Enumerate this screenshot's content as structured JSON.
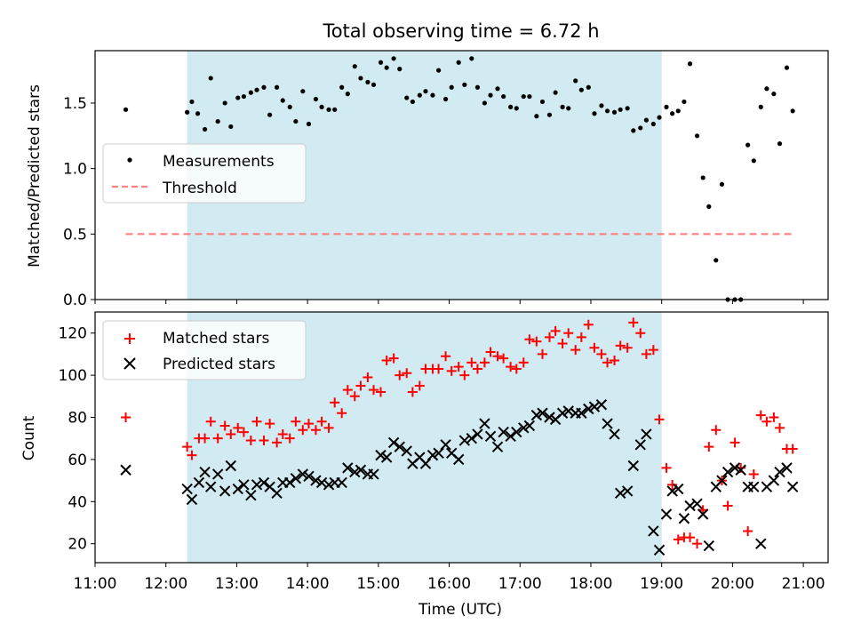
{
  "chart_data": [
    {
      "type": "scatter",
      "title": "Total observing time = 6.72 h",
      "ylabel": "Matched/Predicted stars",
      "ylim": [
        0,
        1.9
      ],
      "yticks": [
        0.0,
        0.5,
        1.0,
        1.5
      ],
      "ytick_labels": [
        "0.0",
        "0.5",
        "1.0",
        "1.5"
      ],
      "grid": false,
      "legend_position": "center-left",
      "shaded_span": {
        "x_start": "12:18",
        "x_end": "19:00",
        "color": "#add8e6"
      },
      "series": [
        {
          "name": "Measurements",
          "marker": "dot",
          "color": "#000000",
          "x": [
            "11:26",
            "12:18",
            "12:22",
            "12:27",
            "12:33",
            "12:38",
            "12:44",
            "12:50",
            "12:55",
            "13:01",
            "13:06",
            "13:12",
            "13:17",
            "13:23",
            "13:28",
            "13:34",
            "13:39",
            "13:45",
            "13:50",
            "13:56",
            "14:01",
            "14:07",
            "14:12",
            "14:18",
            "14:23",
            "14:29",
            "14:34",
            "14:40",
            "14:45",
            "14:51",
            "14:56",
            "15:02",
            "15:07",
            "15:13",
            "15:18",
            "15:24",
            "15:29",
            "15:35",
            "15:40",
            "15:46",
            "15:51",
            "15:57",
            "16:02",
            "16:08",
            "16:13",
            "16:19",
            "16:24",
            "16:30",
            "16:35",
            "16:41",
            "16:46",
            "16:52",
            "16:57",
            "17:03",
            "17:08",
            "17:14",
            "17:19",
            "17:25",
            "17:30",
            "17:36",
            "17:41",
            "17:47",
            "17:52",
            "17:58",
            "18:03",
            "18:09",
            "18:14",
            "18:20",
            "18:25",
            "18:31",
            "18:36",
            "18:42",
            "18:47",
            "18:53",
            "18:58",
            "19:04",
            "19:09",
            "19:14",
            "19:19",
            "19:24",
            "19:30",
            "19:35",
            "19:40",
            "19:46",
            "19:51",
            "19:56",
            "20:02",
            "20:07",
            "20:13",
            "20:18",
            "20:24",
            "20:29",
            "20:35",
            "20:40",
            "20:46",
            "20:51"
          ],
          "y": [
            1.45,
            1.43,
            1.51,
            1.42,
            1.3,
            1.69,
            1.36,
            1.5,
            1.32,
            1.54,
            1.55,
            1.58,
            1.6,
            1.62,
            1.41,
            1.62,
            1.52,
            1.47,
            1.36,
            1.59,
            1.34,
            1.53,
            1.47,
            1.45,
            1.45,
            1.62,
            1.57,
            1.78,
            1.69,
            1.66,
            1.64,
            1.81,
            1.77,
            1.84,
            1.76,
            1.54,
            1.51,
            1.56,
            1.59,
            1.56,
            1.75,
            1.53,
            1.62,
            1.81,
            1.64,
            1.84,
            1.62,
            1.5,
            1.56,
            1.61,
            1.55,
            1.47,
            1.46,
            1.55,
            1.55,
            1.4,
            1.51,
            1.41,
            1.58,
            1.47,
            1.46,
            1.67,
            1.6,
            1.62,
            1.42,
            1.48,
            1.44,
            1.43,
            1.45,
            1.46,
            1.29,
            1.31,
            1.37,
            1.34,
            1.39,
            1.47,
            1.42,
            1.44,
            1.51,
            1.8,
            1.25,
            0.93,
            0.71,
            0.3,
            0.88,
            0.0,
            0.0,
            0.0,
            1.18,
            1.06,
            1.47,
            1.61,
            1.57,
            1.19,
            1.77,
            1.44
          ]
        },
        {
          "name": "Threshold",
          "marker": "dashed-line",
          "color": "#ff8080",
          "x": [
            "11:26",
            "20:51"
          ],
          "y": [
            0.5,
            0.5
          ]
        }
      ]
    },
    {
      "type": "scatter",
      "xlabel": "Time (UTC)",
      "ylabel": "Count",
      "ylim": [
        11,
        130
      ],
      "yticks": [
        20,
        40,
        60,
        80,
        100,
        120
      ],
      "ytick_labels": [
        "20",
        "40",
        "60",
        "80",
        "100",
        "120"
      ],
      "xlim": [
        "11:00",
        "21:21"
      ],
      "xticks": [
        "11:00",
        "12:00",
        "13:00",
        "14:00",
        "15:00",
        "16:00",
        "17:00",
        "18:00",
        "19:00",
        "20:00",
        "21:00"
      ],
      "grid": false,
      "legend_position": "top-left",
      "shaded_span": {
        "x_start": "12:18",
        "x_end": "19:00",
        "color": "#add8e6"
      },
      "series": [
        {
          "name": "Matched stars",
          "marker": "plus",
          "color": "#ff0000",
          "x": [
            "11:26",
            "12:18",
            "12:22",
            "12:28",
            "12:33",
            "12:38",
            "12:44",
            "12:50",
            "12:55",
            "13:01",
            "13:06",
            "13:12",
            "13:17",
            "13:23",
            "13:28",
            "13:34",
            "13:39",
            "13:45",
            "13:50",
            "13:56",
            "14:01",
            "14:07",
            "14:12",
            "14:18",
            "14:23",
            "14:29",
            "14:34",
            "14:40",
            "14:45",
            "14:51",
            "14:56",
            "15:02",
            "15:07",
            "15:13",
            "15:18",
            "15:24",
            "15:29",
            "15:35",
            "15:40",
            "15:46",
            "15:51",
            "15:57",
            "16:02",
            "16:08",
            "16:13",
            "16:19",
            "16:24",
            "16:30",
            "16:35",
            "16:41",
            "16:46",
            "16:52",
            "16:57",
            "17:03",
            "17:08",
            "17:14",
            "17:19",
            "17:25",
            "17:30",
            "17:36",
            "17:41",
            "17:47",
            "17:52",
            "17:58",
            "18:03",
            "18:09",
            "18:14",
            "18:20",
            "18:25",
            "18:31",
            "18:36",
            "18:42",
            "18:47",
            "18:53",
            "18:58",
            "19:04",
            "19:09",
            "19:14",
            "19:19",
            "19:24",
            "19:30",
            "19:35",
            "19:40",
            "19:46",
            "19:51",
            "19:56",
            "20:02",
            "20:07",
            "20:13",
            "20:18",
            "20:24",
            "20:29",
            "20:35",
            "20:40",
            "20:46",
            "20:51"
          ],
          "y": [
            80,
            66,
            62,
            70,
            70,
            78,
            70,
            76,
            72,
            75,
            73,
            69,
            78,
            69,
            77,
            68,
            72,
            70,
            78,
            74,
            77,
            74,
            78,
            75,
            87,
            82,
            93,
            90,
            95,
            99,
            93,
            92,
            107,
            108,
            100,
            101,
            92,
            95,
            103,
            103,
            103,
            109,
            102,
            104,
            100,
            106,
            103,
            106,
            111,
            109,
            108,
            104,
            103,
            106,
            117,
            116,
            110,
            118,
            121,
            115,
            120,
            112,
            118,
            124,
            113,
            110,
            106,
            107,
            114,
            113,
            125,
            120,
            110,
            112,
            79,
            56,
            48,
            22,
            23,
            23,
            20,
            36,
            66,
            74,
            50,
            38,
            68,
            56,
            26,
            53,
            81,
            78,
            80,
            75,
            65,
            65
          ]
        },
        {
          "name": "Predicted stars",
          "marker": "x",
          "color": "#000000",
          "x": [
            "11:26",
            "12:18",
            "12:22",
            "12:28",
            "12:33",
            "12:38",
            "12:44",
            "12:50",
            "12:55",
            "13:01",
            "13:06",
            "13:12",
            "13:17",
            "13:23",
            "13:28",
            "13:34",
            "13:39",
            "13:45",
            "13:50",
            "13:56",
            "14:01",
            "14:07",
            "14:12",
            "14:18",
            "14:23",
            "14:29",
            "14:34",
            "14:40",
            "14:45",
            "14:51",
            "14:56",
            "15:02",
            "15:07",
            "15:13",
            "15:18",
            "15:24",
            "15:29",
            "15:35",
            "15:40",
            "15:46",
            "15:51",
            "15:57",
            "16:02",
            "16:08",
            "16:13",
            "16:19",
            "16:24",
            "16:30",
            "16:35",
            "16:41",
            "16:46",
            "16:52",
            "16:57",
            "17:03",
            "17:08",
            "17:14",
            "17:19",
            "17:25",
            "17:30",
            "17:36",
            "17:41",
            "17:47",
            "17:52",
            "17:58",
            "18:03",
            "18:09",
            "18:14",
            "18:20",
            "18:25",
            "18:31",
            "18:36",
            "18:42",
            "18:47",
            "18:53",
            "18:58",
            "19:04",
            "19:09",
            "19:14",
            "19:19",
            "19:24",
            "19:30",
            "19:35",
            "19:40",
            "19:46",
            "19:51",
            "19:56",
            "20:02",
            "20:07",
            "20:13",
            "20:18",
            "20:24",
            "20:29",
            "20:35",
            "20:40",
            "20:46",
            "20:51"
          ],
          "y": [
            55,
            46,
            41,
            49,
            54,
            47,
            53,
            45,
            57,
            46,
            48,
            43,
            48,
            49,
            47,
            44,
            49,
            49,
            51,
            53,
            52,
            50,
            49,
            48,
            49,
            49,
            56,
            54,
            55,
            53,
            53,
            62,
            61,
            68,
            66,
            64,
            58,
            61,
            58,
            62,
            63,
            67,
            63,
            60,
            69,
            70,
            72,
            77,
            71,
            66,
            73,
            71,
            73,
            75,
            76,
            81,
            82,
            80,
            79,
            82,
            83,
            82,
            82,
            84,
            85,
            86,
            77,
            72,
            44,
            45,
            57,
            67,
            72,
            26,
            17,
            34,
            45,
            46,
            32,
            38,
            39,
            34,
            19,
            47,
            50,
            54,
            56,
            55,
            47,
            47,
            20,
            47,
            50,
            54,
            56,
            47
          ]
        }
      ]
    }
  ]
}
